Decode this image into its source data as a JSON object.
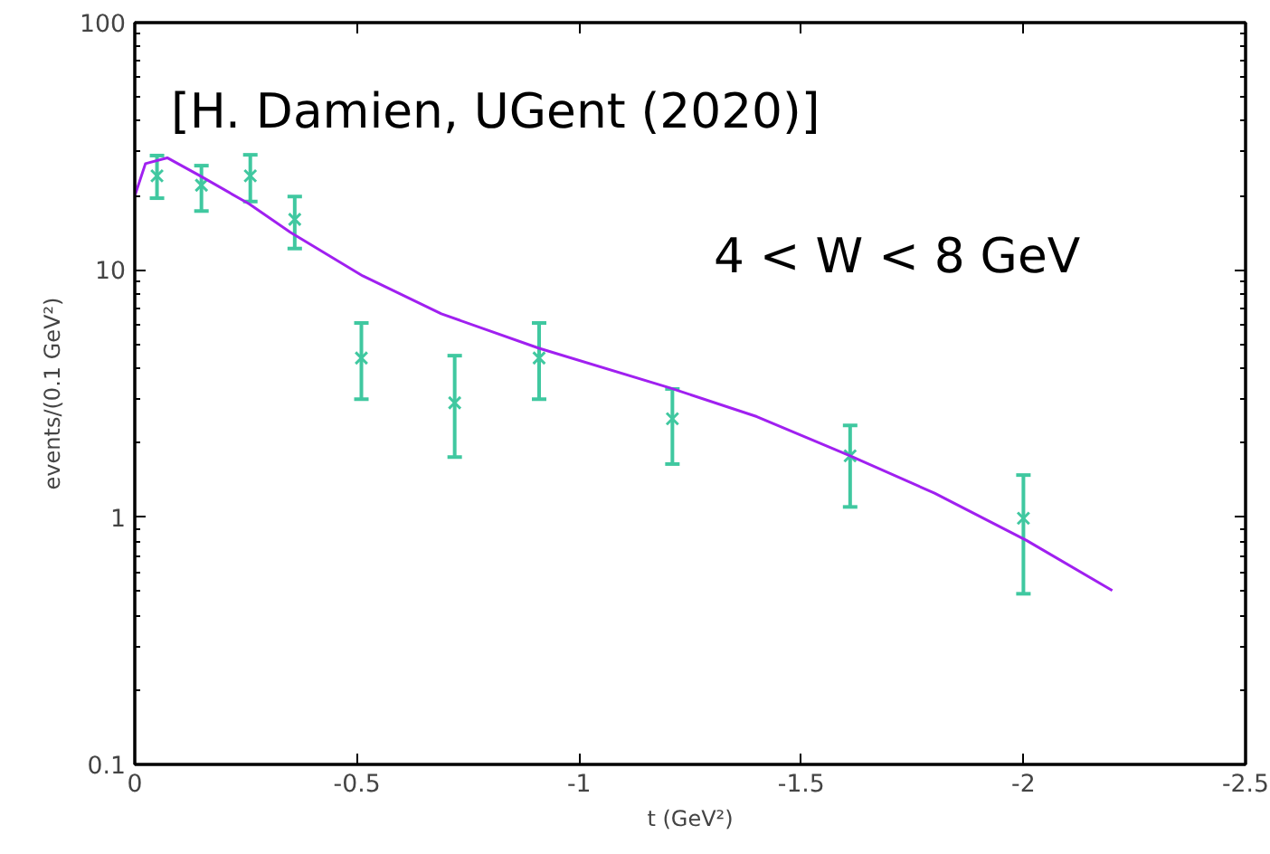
{
  "chart_data": {
    "type": "scatter",
    "xlabel": "t (GeV²)",
    "ylabel": "events/(0.1 GeV²)",
    "annotations": [
      "[H. Damien, UGent (2020)]",
      "4 < W < 8 GeV"
    ],
    "xlim": [
      0,
      -2.5
    ],
    "xticks": [
      0,
      -0.5,
      -1,
      -1.5,
      -2,
      -2.5
    ],
    "ylim": [
      0.1,
      100
    ],
    "yticks": [
      0.1,
      1,
      10,
      100
    ],
    "log": "y",
    "grid": false,
    "series": [
      {
        "marker": "cross",
        "color": "#40c8a0",
        "x": [
          -0.05,
          -0.15,
          -0.26,
          -0.36,
          -0.51,
          -0.72,
          -0.91,
          -1.21,
          -1.61,
          -2.0
        ],
        "values": [
          24,
          22,
          24,
          16,
          4.4,
          2.9,
          4.4,
          2.5,
          1.77,
          0.99
        ],
        "errors": [
          [
            19.5,
            29
          ],
          [
            17.3,
            26.4
          ],
          [
            18.9,
            29.2
          ],
          [
            12.2,
            19.8
          ],
          [
            3.0,
            6.1
          ],
          [
            1.75,
            4.5
          ],
          [
            3.0,
            6.1
          ],
          [
            1.64,
            3.3
          ],
          [
            1.1,
            2.35
          ],
          [
            0.49,
            1.48
          ]
        ]
      },
      {
        "type": "line",
        "color": "#a020f0",
        "line_style": "solid",
        "x": [
          0,
          -0.024,
          -0.073,
          -0.147,
          -0.257,
          -0.35,
          -0.513,
          -0.69,
          -0.91,
          -1.205,
          -1.4,
          -1.61,
          -1.8,
          -2.007,
          -2.2
        ],
        "values": [
          19.9,
          26.9,
          28.4,
          24,
          18.5,
          14.2,
          9.46,
          6.64,
          4.82,
          3.33,
          2.55,
          1.77,
          1.25,
          0.805,
          0.505
        ]
      }
    ]
  }
}
